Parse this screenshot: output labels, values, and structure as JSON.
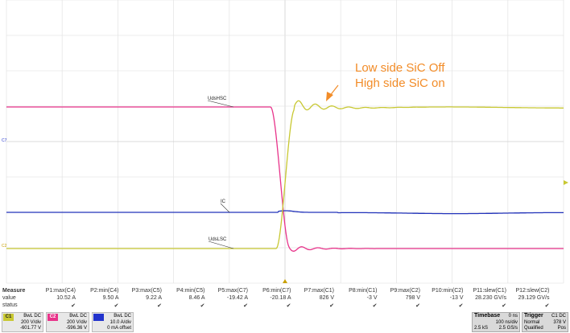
{
  "annotation": {
    "line1": "Low side SiC Off",
    "line2": "High side SiC on",
    "color": "#f28c28"
  },
  "traces": {
    "uds_hsc": {
      "label": "UdsHSC",
      "color": "#e8338a"
    },
    "ic": {
      "label": "IC",
      "color": "#2233bb"
    },
    "uds_lsc": {
      "label": "UdsLSC",
      "color": "#c8c832"
    }
  },
  "channel_markers": {
    "c7": "C7",
    "c2": "C2"
  },
  "measurements": {
    "row_labels": [
      "Measure",
      "value",
      "status"
    ],
    "columns": [
      {
        "name": "P1:max(C4)",
        "value": "10.52 A"
      },
      {
        "name": "P2:min(C4)",
        "value": "9.50 A"
      },
      {
        "name": "P3:max(C5)",
        "value": "9.22 A"
      },
      {
        "name": "P4:min(C5)",
        "value": "8.46 A"
      },
      {
        "name": "P5:max(C7)",
        "value": "-19.42 A"
      },
      {
        "name": "P6:min(C7)",
        "value": "-20.18 A"
      },
      {
        "name": "P7:max(C1)",
        "value": "826 V"
      },
      {
        "name": "P8:min(C1)",
        "value": "-3 V"
      },
      {
        "name": "P9:max(C2)",
        "value": "798 V"
      },
      {
        "name": "P10:min(C2)",
        "value": "-13 V"
      },
      {
        "name": "P11:slew(C1)",
        "value": "28.230 GV/s"
      },
      {
        "name": "P12:slew(C2)",
        "value": "29.129 GV/s"
      }
    ],
    "status_mark": "✔"
  },
  "channels": [
    {
      "tag": "C1",
      "color": "#c8c832",
      "mode": "BwL DC",
      "scale": "200 V/div",
      "offset": "-601.77 V"
    },
    {
      "tag": "C2",
      "color": "#e8338a",
      "mode": "BwL DC",
      "scale": "200 V/div",
      "offset": "-596.36 V"
    },
    {
      "tag": "",
      "color": "#2233cc",
      "mode": "BwL DC",
      "scale": "10.0 A/div",
      "offset": "0 mA offset"
    }
  ],
  "timebase": {
    "title": "Timebase",
    "offset": "0 ns",
    "scale": "100 ns/div",
    "samples": "2.5 kS",
    "rate": "2.5 GS/s"
  },
  "trigger": {
    "title": "Trigger",
    "source": "C1 DC",
    "mode": "Normal",
    "level": "378 V",
    "qualifier": "Qualified",
    "slope": "Pos"
  }
}
